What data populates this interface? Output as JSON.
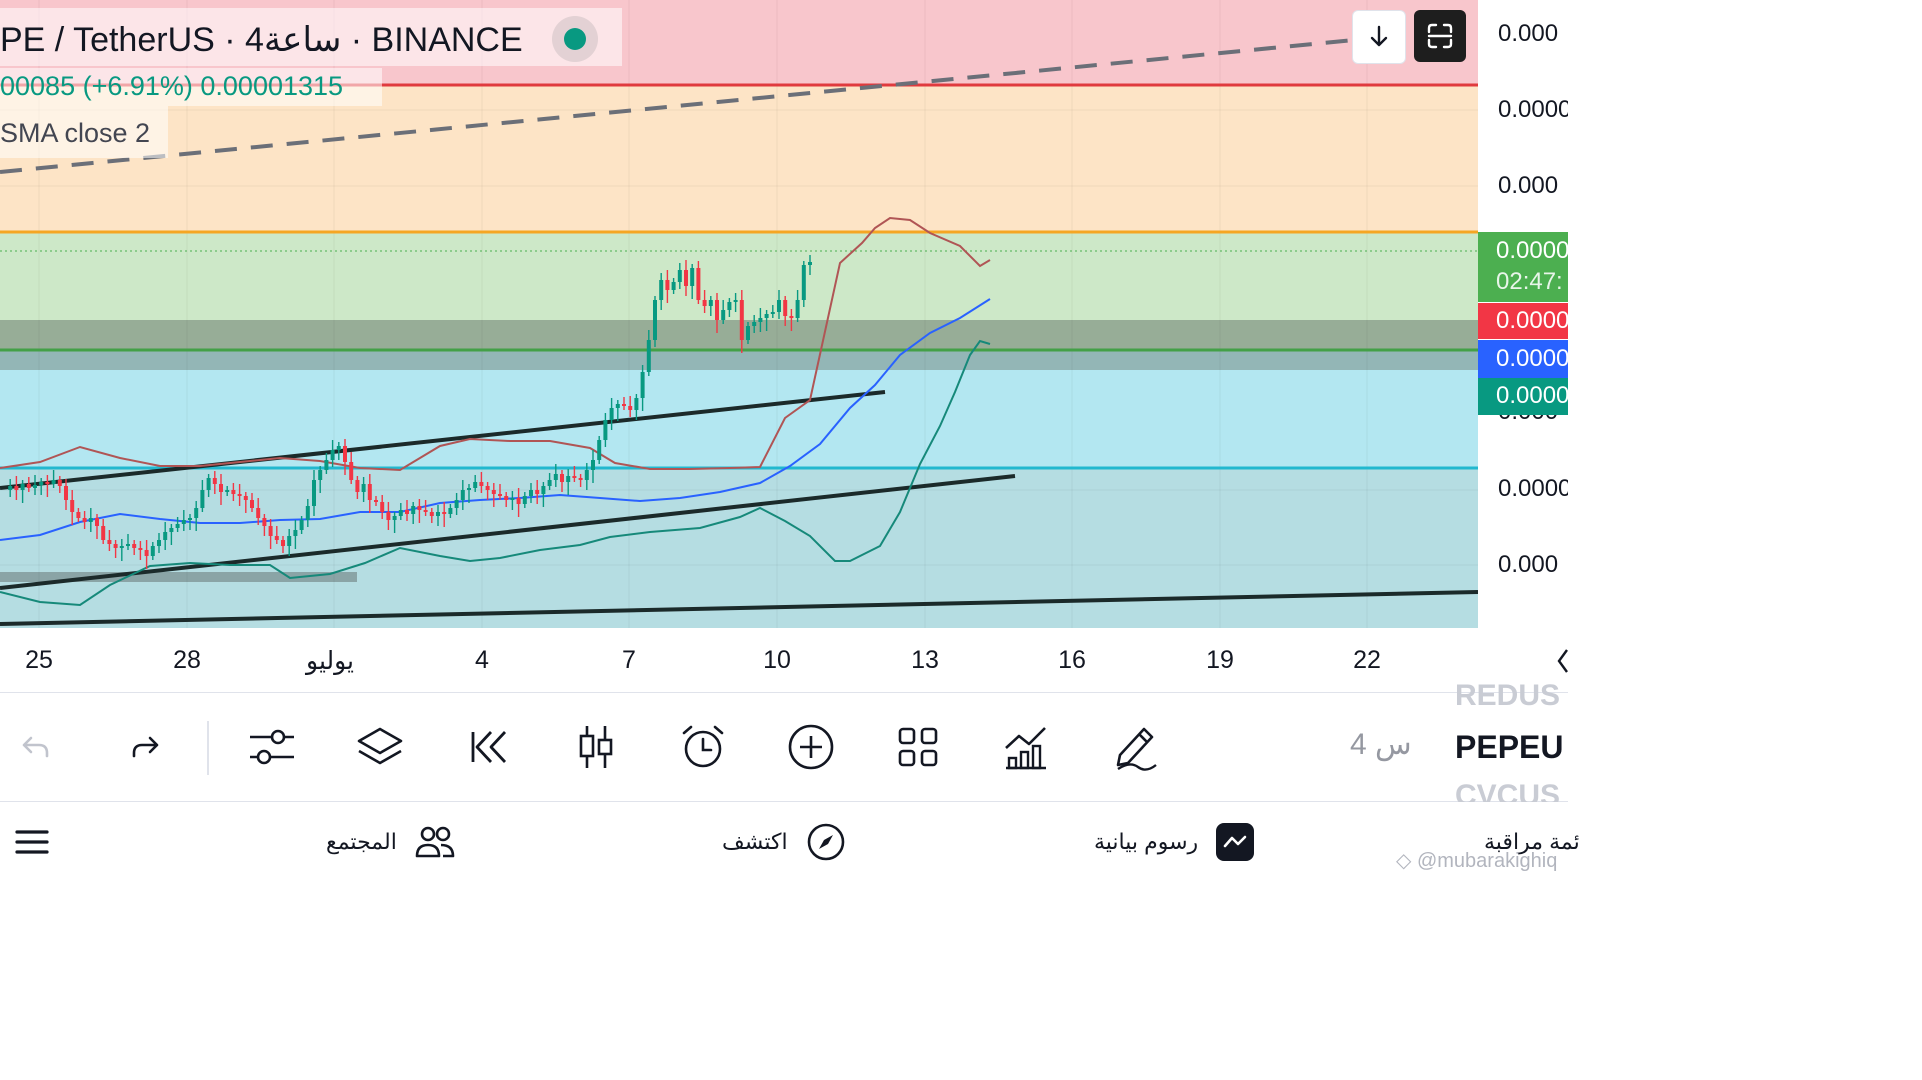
{
  "legend": {
    "title": "PE / TetherUS · 4ساعة · BINANCE",
    "change": "00085 (+6.91%)  0.00001315",
    "indicator": "SMA close 2"
  },
  "price_scale": {
    "labels": [
      "0.000",
      "0.0000",
      "0.000",
      "0.000",
      "0.0000",
      "0.000"
    ],
    "tags": [
      {
        "text": "0.0000",
        "color": "#4caf50"
      },
      {
        "text": "02:47:",
        "color": "#4caf50"
      },
      {
        "text": "0.0000",
        "color": "#f23645"
      },
      {
        "text": "0.0000",
        "color": "#2962ff"
      },
      {
        "text": "0.0000",
        "color": "#089981"
      }
    ]
  },
  "time_axis": [
    "25",
    "28",
    "يوليو",
    "4",
    "7",
    "10",
    "13",
    "16",
    "19",
    "22"
  ],
  "toolbar": {
    "interval": "4 س",
    "symbol": "PEPEU",
    "ghost_prev": "REDUS",
    "ghost_next": "CVCUS"
  },
  "bottom_nav": {
    "community": "المجتمع",
    "explore": "اكتشف",
    "charts": "رسوم بيانية",
    "watchlist": "ئمة مراقبة"
  },
  "watermark": "@mubarakighiq",
  "colors": {
    "up": "#089981",
    "down": "#f23645",
    "zone_red": "#f8c6cc",
    "zone_orange": "#fde4c6",
    "zone_green": "#cde8c8",
    "zone_dark": "#97ad97",
    "zone_cyan": "#b3e7f1",
    "zone_teal": "#b5dde2",
    "sma": "#2962ff",
    "bb_upper": "#b05555",
    "bb_lower": "#16897a"
  },
  "chart_data": {
    "type": "candlestick",
    "symbol": "PE / TetherUS",
    "exchange": "BINANCE",
    "x_tick_labels": [
      "25",
      "28",
      "يوليو",
      "4",
      "7",
      "10",
      "13",
      "16",
      "19",
      "22"
    ],
    "indicators": [
      "SMA close 2",
      "Bollinger Bands"
    ]
  }
}
